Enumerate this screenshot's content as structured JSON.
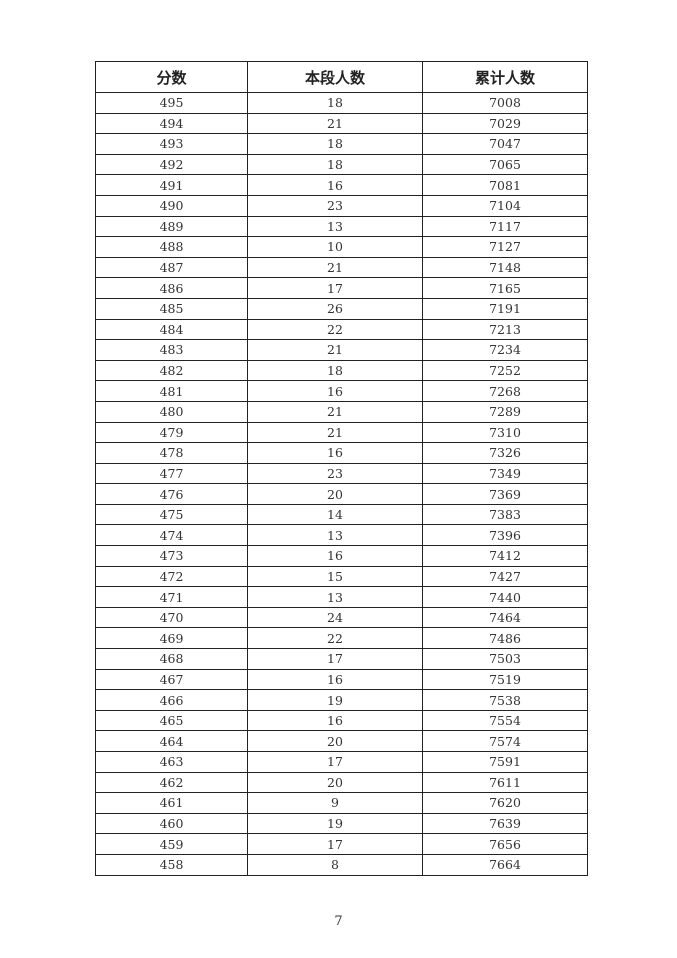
{
  "table": {
    "headers": [
      "分数",
      "本段人数",
      "累计人数"
    ],
    "rows": [
      [
        "495",
        "18",
        "7008"
      ],
      [
        "494",
        "21",
        "7029"
      ],
      [
        "493",
        "18",
        "7047"
      ],
      [
        "492",
        "18",
        "7065"
      ],
      [
        "491",
        "16",
        "7081"
      ],
      [
        "490",
        "23",
        "7104"
      ],
      [
        "489",
        "13",
        "7117"
      ],
      [
        "488",
        "10",
        "7127"
      ],
      [
        "487",
        "21",
        "7148"
      ],
      [
        "486",
        "17",
        "7165"
      ],
      [
        "485",
        "26",
        "7191"
      ],
      [
        "484",
        "22",
        "7213"
      ],
      [
        "483",
        "21",
        "7234"
      ],
      [
        "482",
        "18",
        "7252"
      ],
      [
        "481",
        "16",
        "7268"
      ],
      [
        "480",
        "21",
        "7289"
      ],
      [
        "479",
        "21",
        "7310"
      ],
      [
        "478",
        "16",
        "7326"
      ],
      [
        "477",
        "23",
        "7349"
      ],
      [
        "476",
        "20",
        "7369"
      ],
      [
        "475",
        "14",
        "7383"
      ],
      [
        "474",
        "13",
        "7396"
      ],
      [
        "473",
        "16",
        "7412"
      ],
      [
        "472",
        "15",
        "7427"
      ],
      [
        "471",
        "13",
        "7440"
      ],
      [
        "470",
        "24",
        "7464"
      ],
      [
        "469",
        "22",
        "7486"
      ],
      [
        "468",
        "17",
        "7503"
      ],
      [
        "467",
        "16",
        "7519"
      ],
      [
        "466",
        "19",
        "7538"
      ],
      [
        "465",
        "16",
        "7554"
      ],
      [
        "464",
        "20",
        "7574"
      ],
      [
        "463",
        "17",
        "7591"
      ],
      [
        "462",
        "20",
        "7611"
      ],
      [
        "461",
        "9",
        "7620"
      ],
      [
        "460",
        "19",
        "7639"
      ],
      [
        "459",
        "17",
        "7656"
      ],
      [
        "458",
        "8",
        "7664"
      ]
    ]
  },
  "page_number": "7"
}
